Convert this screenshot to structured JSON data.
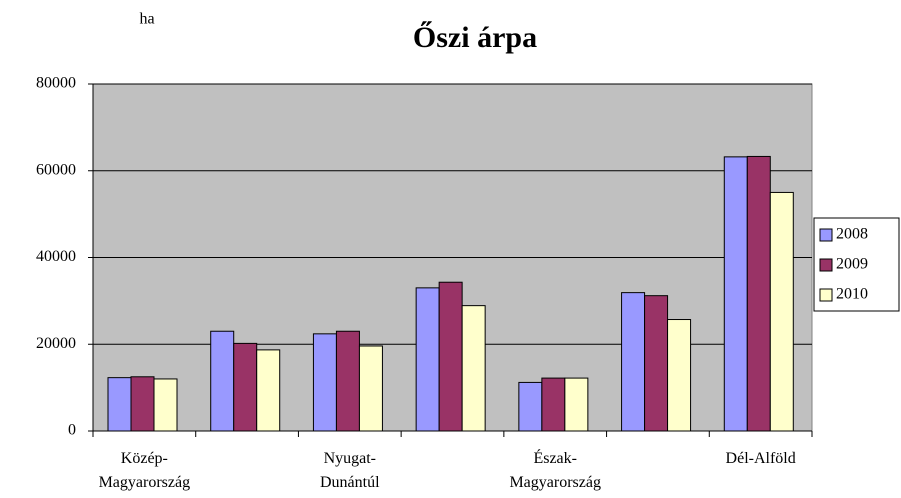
{
  "chart_data": {
    "type": "bar",
    "title": "Őszi árpa",
    "y_label": "ha",
    "categories": [
      "Közép-\nMagyarország",
      null,
      "Nyugat-\nDunántúl",
      null,
      "Észak-\nMagyarország",
      null,
      "Dél-Alföld"
    ],
    "series": [
      {
        "name": "2008",
        "color": "#9999ff",
        "values": [
          12300,
          23000,
          22400,
          33000,
          11200,
          31900,
          63200
        ]
      },
      {
        "name": "2009",
        "color": "#993366",
        "values": [
          12500,
          20200,
          23000,
          34300,
          12200,
          31200,
          63300
        ]
      },
      {
        "name": "2010",
        "color": "#ffffcc",
        "values": [
          12000,
          18700,
          19600,
          28900,
          12200,
          25700,
          55000
        ]
      }
    ],
    "ylim": [
      0,
      80000
    ],
    "yticks": [
      0,
      20000,
      40000,
      60000,
      80000
    ],
    "grid": true,
    "legend": "right"
  }
}
